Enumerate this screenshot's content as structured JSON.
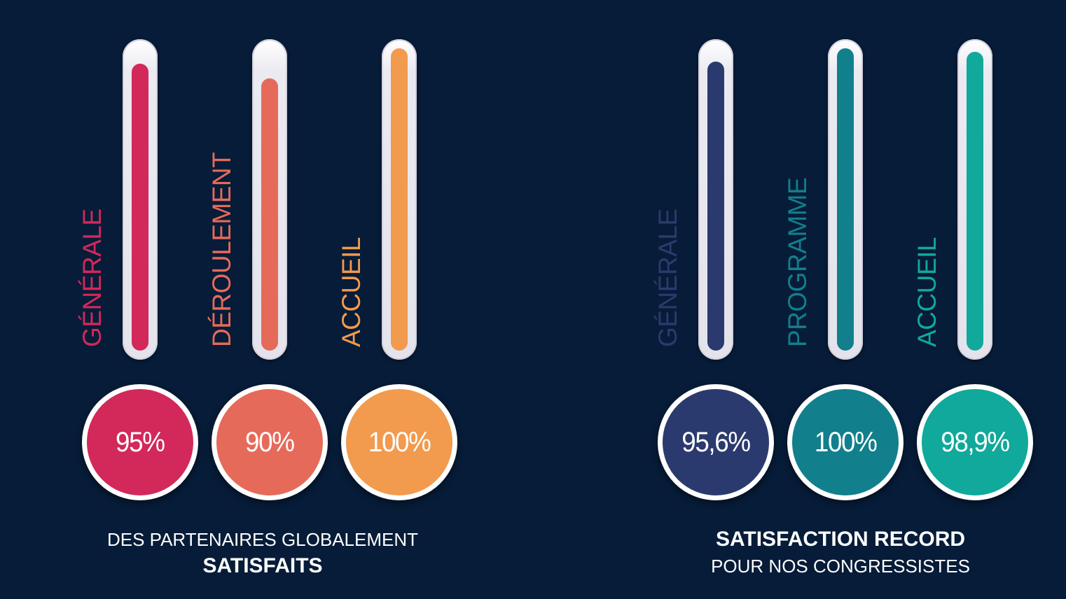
{
  "chart_data": [
    {
      "type": "bar",
      "categories": [
        "GÉNÉRALE",
        "DÉROULEMENT",
        "ACCUEIL"
      ],
      "values": [
        95,
        90,
        100
      ],
      "value_labels": [
        "95%",
        "90%",
        "100%"
      ],
      "colors": [
        "#d2285a",
        "#e66a5a",
        "#f29a4d"
      ],
      "ylim": [
        0,
        100
      ],
      "caption_line1": "DES PARTENAIRES GLOBALEMENT",
      "caption_line2": "SATISFAITS"
    },
    {
      "type": "bar",
      "categories": [
        "GÉNÉRALE",
        "PROGRAMME",
        "ACCUEIL"
      ],
      "values": [
        95.6,
        100,
        98.9
      ],
      "value_labels": [
        "95,6%",
        "100%",
        "98,9%"
      ],
      "colors": [
        "#2b3a6e",
        "#117f8c",
        "#10a99b"
      ],
      "ylim": [
        0,
        100
      ],
      "caption_line1": "SATISFACTION RECORD",
      "caption_line2": "POUR NOS CONGRESSISTES"
    }
  ]
}
